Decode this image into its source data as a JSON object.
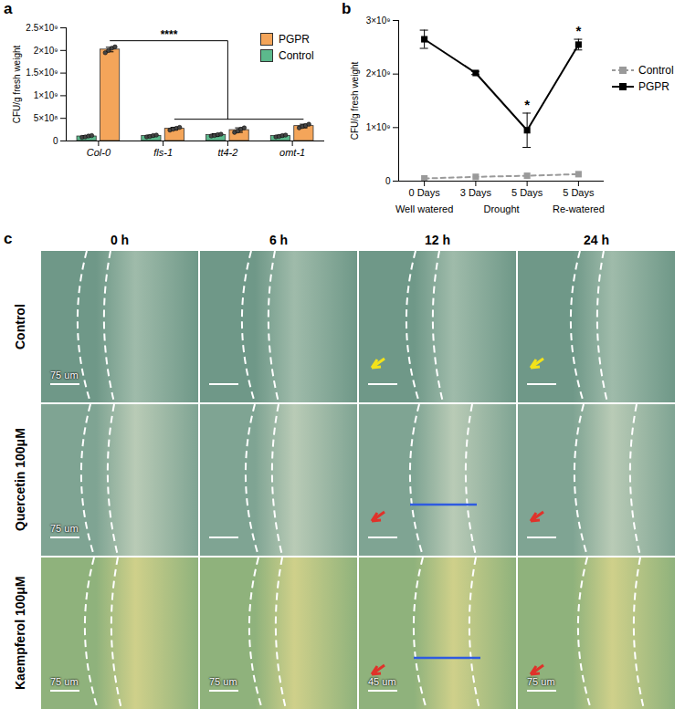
{
  "chart_data": [
    {
      "panel": "a",
      "type": "bar",
      "y_label": "CFU/g fresh weight",
      "categories": [
        "Col-0",
        "fls-1",
        "tt4-2",
        "omt-1"
      ],
      "series": [
        {
          "name": "Control",
          "color": "#5cb98c",
          "values": [
            100000000.0,
            110000000.0,
            130000000.0,
            110000000.0
          ],
          "error": [
            20000000.0,
            20000000.0,
            30000000.0,
            20000000.0
          ],
          "points": [
            [
              80000000.0,
              90000000.0,
              110000000.0,
              120000000.0
            ],
            [
              90000000.0,
              100000000.0,
              120000000.0,
              130000000.0
            ],
            [
              110000000.0,
              120000000.0,
              140000000.0,
              150000000.0
            ],
            [
              90000000.0,
              100000000.0,
              120000000.0,
              130000000.0
            ]
          ]
        },
        {
          "name": "PGPR",
          "color": "#f4a55a",
          "values": [
            2020000000.0,
            270000000.0,
            240000000.0,
            330000000.0
          ],
          "error": [
            50000000.0,
            30000000.0,
            50000000.0,
            40000000.0
          ],
          "points": [
            [
              1950000000.0,
              2000000000.0,
              2050000000.0,
              2080000000.0
            ],
            [
              240000000.0,
              260000000.0,
              280000000.0,
              300000000.0
            ],
            [
              190000000.0,
              220000000.0,
              260000000.0,
              290000000.0
            ],
            [
              290000000.0,
              320000000.0,
              340000000.0,
              370000000.0
            ]
          ]
        }
      ],
      "significance": "****",
      "ylim": [
        0,
        2500000000.0
      ],
      "yticks": [
        0,
        {
          "value": 500000000.0,
          "label": "5×10⁸"
        },
        {
          "value": 1000000000.0,
          "label": "1×10⁹"
        },
        {
          "value": 1500000000.0,
          "label": "1.5×10⁹"
        },
        {
          "value": 2000000000.0,
          "label": "2×10⁹"
        },
        {
          "value": 2500000000.0,
          "label": "2.5×10⁹"
        }
      ],
      "grid": false,
      "legend": "top-right"
    },
    {
      "panel": "b",
      "type": "line",
      "y_label": "CFU/g fresh weight",
      "categories": [
        "0 Days",
        "3 Days",
        "5 Days",
        "5 Days"
      ],
      "groups": [
        {
          "label": "Well watered",
          "start": 0,
          "end": 0
        },
        {
          "label": "Drought",
          "start": 1,
          "end": 2
        },
        {
          "label": "Re-watered",
          "start": 3,
          "end": 3
        }
      ],
      "series": [
        {
          "name": "Control",
          "color": "#9a9a9a",
          "line_style": "dashed",
          "marker": "square",
          "values": [
            50000000.0,
            80000000.0,
            100000000.0,
            130000000.0
          ]
        },
        {
          "name": "PGPR",
          "color": "#000000",
          "line_style": "solid",
          "marker": "square",
          "values": [
            2650000000.0,
            2020000000.0,
            950000000.0,
            2550000000.0
          ],
          "error": [
            170000000.0,
            30000000.0,
            320000000.0,
            100000000.0
          ],
          "significance": [
            null,
            null,
            "*",
            "*"
          ]
        }
      ],
      "ylim": [
        0,
        3000000000.0
      ],
      "yticks": [
        0,
        {
          "value": 1000000000.0,
          "label": "1×10⁹"
        },
        {
          "value": 2000000000.0,
          "label": "2×10⁹"
        },
        {
          "value": 3000000000.0,
          "label": "3×10⁹"
        }
      ],
      "grid": false,
      "legend": "right"
    }
  ],
  "images": {
    "panel": "c",
    "columns": [
      "0 h",
      "6 h",
      "12 h",
      "24 h"
    ],
    "rows": [
      "Control",
      "Quercetin 100μM",
      "Kaempferol 100μM"
    ],
    "scale_bars": [
      [
        "75 um",
        null,
        null,
        null
      ],
      [
        "75 um",
        null,
        null,
        null
      ],
      [
        "75 um",
        "75 um",
        "45 um",
        "75 um"
      ]
    ]
  }
}
